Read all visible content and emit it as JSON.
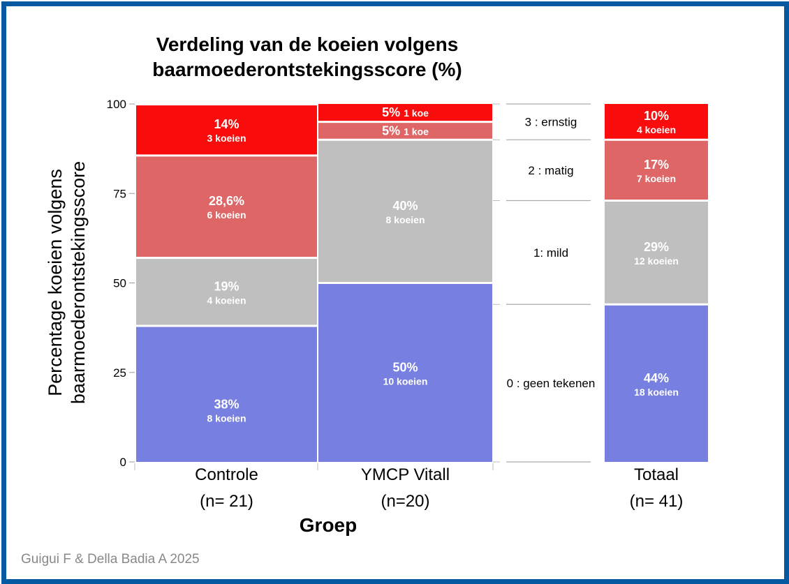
{
  "chart_data": {
    "type": "bar",
    "stacked": true,
    "title": "Verdeling van de koeien volgens baarmoederontstekingsscore (%)",
    "title_lines": [
      "Verdeling van de koeien volgens",
      "baarmoederontstekingsscore (%)"
    ],
    "xlabel": "Groep",
    "ylabel": "Percentage koeien volgens baarmoederontstekingsscore",
    "ylabel_lines": [
      "Percentage koeien volgens",
      "baarmoederontstekingsscore"
    ],
    "ylim": [
      0,
      100
    ],
    "yticks": [
      0,
      25,
      50,
      75,
      100
    ],
    "grid": false,
    "categories": [
      {
        "name": "Controle",
        "n_label": "(n= 21)"
      },
      {
        "name": "YMCP Vitall",
        "n_label": "(n=20)"
      },
      {
        "name": "Totaal",
        "n_label": "(n= 41)"
      }
    ],
    "series": [
      {
        "name": "0 : geen tekenen",
        "color": "#7780e0",
        "values": [
          38,
          50,
          44
        ],
        "labels": [
          "38%",
          "50%",
          "44%"
        ],
        "counts": [
          "8 koeien",
          "10 koeien",
          "18 koeien"
        ]
      },
      {
        "name": "1: mild",
        "color": "#bfbfbf",
        "values": [
          19,
          40,
          29
        ],
        "labels": [
          "19%",
          "40%",
          "29%"
        ],
        "counts": [
          "4 koeien",
          "8 koeien",
          "12 koeien"
        ]
      },
      {
        "name": "2 : matig",
        "color": "#de6666",
        "values": [
          28.6,
          5,
          17
        ],
        "labels": [
          "28,6%",
          "5%",
          "17%"
        ],
        "counts": [
          "6 koeien",
          "1 koe",
          "7 koeien"
        ]
      },
      {
        "name": "3 : ernstig",
        "color": "#fa0c0c",
        "values": [
          14,
          5,
          10
        ],
        "labels": [
          "14%",
          "5%",
          "10%"
        ],
        "counts": [
          "3 koeien",
          "1 koe",
          "4 koeien"
        ]
      }
    ],
    "legend_position": "between YMCP Vitall and Totaal",
    "legend_order": [
      "3 : ernstig",
      "2 : matig",
      "1: mild",
      "0 : geen tekenen"
    ]
  },
  "credit": "Guigui F & Della Badia A 2025",
  "frame_color": "#0459a0"
}
